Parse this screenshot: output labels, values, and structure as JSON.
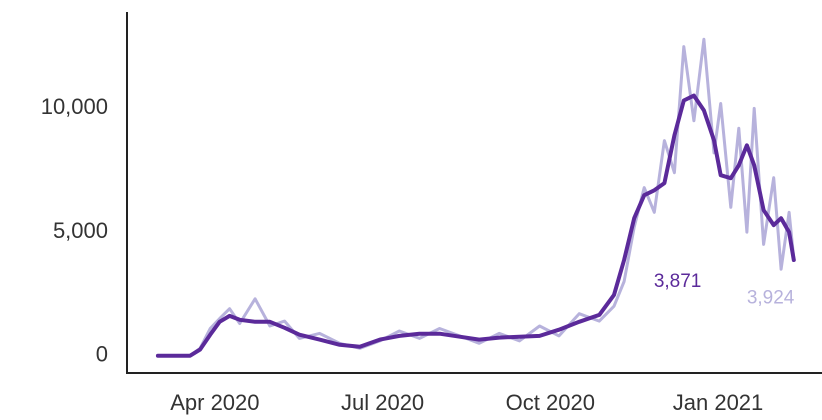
{
  "chart_data": {
    "type": "line",
    "x": [
      2020.165,
      2020.213,
      2020.228,
      2020.243,
      2020.257,
      2020.272,
      2020.287,
      2020.31,
      2020.332,
      2020.354,
      2020.376,
      2020.406,
      2020.436,
      2020.466,
      2020.496,
      2020.525,
      2020.555,
      2020.585,
      2020.615,
      2020.644,
      2020.674,
      2020.704,
      2020.734,
      2020.763,
      2020.793,
      2020.823,
      2020.845,
      2020.86,
      2020.875,
      2020.89,
      2020.905,
      2020.92,
      2020.935,
      2020.949,
      2020.964,
      2020.979,
      2020.994,
      2021.004,
      2021.019,
      2021.031,
      2021.043,
      2021.054,
      2021.068,
      2021.083,
      2021.094,
      2021.106,
      2021.113
    ],
    "series": [
      {
        "color": "#b7b2dc",
        "values": [
          0,
          0,
          300,
          1100,
          1500,
          1900,
          1300,
          2300,
          1200,
          1400,
          700,
          900,
          500,
          300,
          600,
          1000,
          700,
          1100,
          800,
          500,
          900,
          600,
          1200,
          800,
          1700,
          1400,
          2000,
          3000,
          5200,
          6800,
          5800,
          8700,
          7400,
          12500,
          9500,
          12800,
          8200,
          10200,
          6000,
          9200,
          5000,
          10000,
          4500,
          7200,
          3500,
          5800,
          3924
        ],
        "value_labels": [
          null,
          null,
          null,
          null,
          null,
          null,
          null,
          null,
          null,
          null,
          null,
          null,
          null,
          null,
          null,
          null,
          null,
          null,
          null,
          null,
          null,
          null,
          null,
          null,
          null,
          null,
          null,
          null,
          null,
          null,
          null,
          null,
          null,
          null,
          null,
          null,
          null,
          null,
          null,
          null,
          null,
          null,
          null,
          null,
          null,
          null,
          "3,924"
        ]
      },
      {
        "color": "#5b2a9a",
        "values": [
          0,
          0,
          250,
          850,
          1370,
          1610,
          1450,
          1370,
          1370,
          1130,
          850,
          650,
          440,
          360,
          650,
          800,
          890,
          890,
          770,
          650,
          730,
          770,
          800,
          1050,
          1370,
          1650,
          2460,
          3870,
          5560,
          6490,
          6690,
          6980,
          8910,
          10320,
          10520,
          9920,
          8710,
          7300,
          7180,
          7700,
          8510,
          7700,
          5890,
          5280,
          5560,
          5000,
          3871
        ],
        "value_labels": [
          null,
          null,
          null,
          null,
          null,
          null,
          null,
          null,
          null,
          null,
          null,
          null,
          null,
          null,
          null,
          null,
          null,
          null,
          null,
          null,
          null,
          null,
          null,
          null,
          null,
          null,
          null,
          null,
          null,
          null,
          null,
          null,
          null,
          null,
          null,
          null,
          null,
          null,
          null,
          null,
          null,
          null,
          null,
          null,
          null,
          null,
          "3,871"
        ]
      }
    ],
    "xlim": [
      2020.119,
      2021.155
    ],
    "xticks": [
      {
        "value": 2020.25,
        "label": "Apr 2020"
      },
      {
        "value": 2020.5,
        "label": "Jul 2020"
      },
      {
        "value": 2020.75,
        "label": "Oct 2020"
      },
      {
        "value": 2021.0,
        "label": "Jan 2021"
      }
    ],
    "ylim": [
      -700,
      13900
    ],
    "yticks": [
      0,
      {
        "value": 5000,
        "label": "5,000"
      },
      {
        "value": 10000,
        "label": "10,000"
      }
    ],
    "grid": false
  }
}
